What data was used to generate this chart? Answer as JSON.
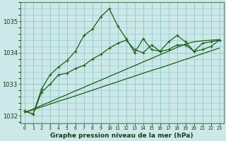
{
  "title": "Graphe pression niveau de la mer (hPa)",
  "bg_color": "#cce8e8",
  "grid_color": "#99cccc",
  "line_color": "#1a5c1a",
  "x_labels": [
    "0",
    "1",
    "2",
    "3",
    "4",
    "5",
    "6",
    "7",
    "8",
    "9",
    "10",
    "11",
    "12",
    "13",
    "14",
    "15",
    "16",
    "17",
    "18",
    "19",
    "20",
    "21",
    "22",
    "23"
  ],
  "ylim": [
    1031.75,
    1035.6
  ],
  "yticks": [
    1032,
    1033,
    1034,
    1035
  ],
  "series1": [
    1032.15,
    1032.05,
    1032.85,
    1033.3,
    1033.55,
    1033.75,
    1034.05,
    1034.55,
    1034.75,
    1035.15,
    1035.4,
    1034.85,
    1034.45,
    1034.0,
    1034.45,
    1034.1,
    1034.05,
    1034.35,
    1034.55,
    1034.35,
    1034.05,
    1034.3,
    1034.35,
    1034.4
  ],
  "series2": [
    1032.15,
    1032.05,
    1032.75,
    1033.0,
    1033.3,
    1033.35,
    1033.5,
    1033.6,
    1033.8,
    1033.95,
    1034.15,
    1034.3,
    1034.4,
    1034.1,
    1034.0,
    1034.25,
    1034.05,
    1034.1,
    1034.25,
    1034.25,
    1034.05,
    1034.1,
    1034.2,
    1034.4
  ],
  "series3_linear": [
    1032.1,
    1032.19,
    1032.28,
    1032.37,
    1032.46,
    1032.54,
    1032.63,
    1032.72,
    1032.81,
    1032.9,
    1032.99,
    1033.08,
    1033.17,
    1033.26,
    1033.35,
    1033.44,
    1033.52,
    1033.61,
    1033.7,
    1033.79,
    1033.88,
    1033.97,
    1034.06,
    1034.15
  ],
  "series4_linear": [
    1032.1,
    1032.21,
    1032.33,
    1032.44,
    1032.56,
    1032.67,
    1032.79,
    1032.9,
    1033.02,
    1033.13,
    1033.25,
    1033.36,
    1033.48,
    1033.59,
    1033.71,
    1033.82,
    1033.94,
    1034.05,
    1034.17,
    1034.28,
    1034.35,
    1034.38,
    1034.4,
    1034.42
  ]
}
